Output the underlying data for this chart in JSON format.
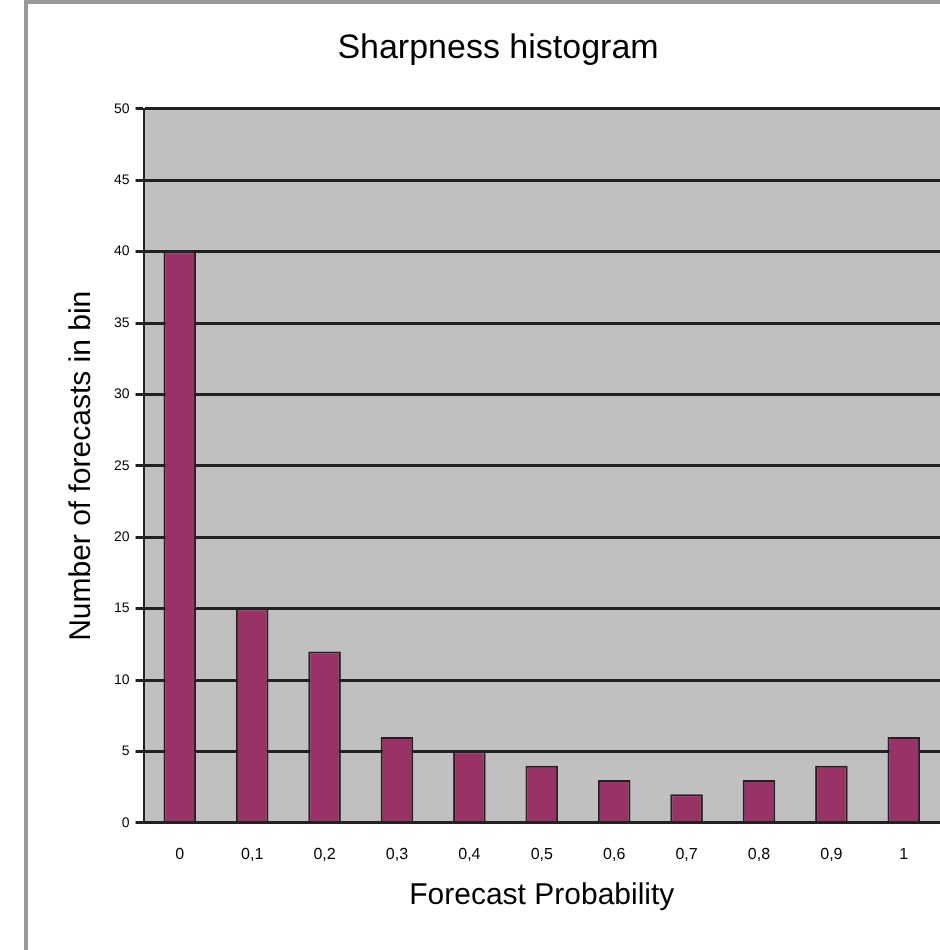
{
  "chart_data": {
    "type": "bar",
    "title": "Sharpness histogram",
    "xlabel": "Forecast Probability",
    "ylabel": "Number of forecasts in bin",
    "categories": [
      "0",
      "0,1",
      "0,2",
      "0,3",
      "0,4",
      "0,5",
      "0,6",
      "0,7",
      "0,8",
      "0,9",
      "1"
    ],
    "values": [
      40,
      15,
      12,
      6,
      5,
      4,
      3,
      2,
      3,
      4,
      6
    ],
    "color": "#993366",
    "ylim": [
      0,
      50
    ],
    "yticks": [
      0,
      5,
      10,
      15,
      20,
      25,
      30,
      35,
      40,
      45,
      50
    ],
    "grid": "y",
    "legend": false
  }
}
